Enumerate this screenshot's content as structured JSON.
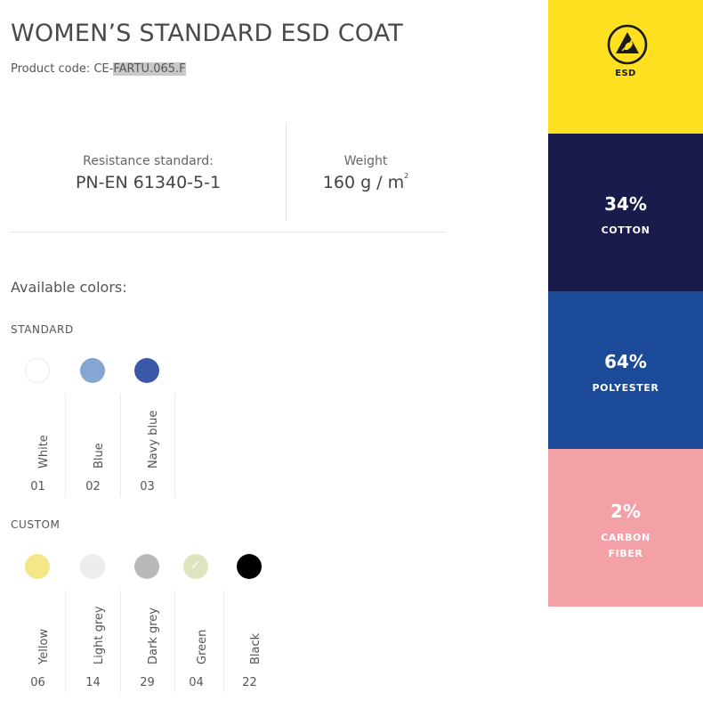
{
  "product": {
    "title": "WOMEN’S STANDARD ESD COAT",
    "code_label": "Product code: CE-",
    "code_highlight": "FARTU.065.F"
  },
  "specs": {
    "resistance_label": "Resistance standard:",
    "resistance_value": "PN-EN 61340-5-1",
    "weight_label": "Weight",
    "weight_value": "160 g / m",
    "weight_sup": "2"
  },
  "colors": {
    "heading": "Available colors:",
    "standard": {
      "title": "STANDARD",
      "items": [
        {
          "name": "White",
          "code": "01",
          "hex": "#ffffff"
        },
        {
          "name": "Blue",
          "code": "02",
          "hex": "#84a6d0"
        },
        {
          "name": "Navy blue",
          "code": "03",
          "hex": "#3a57a8"
        }
      ]
    },
    "custom": {
      "title": "CUSTOM",
      "items": [
        {
          "name": "Yellow",
          "code": "06",
          "hex": "#f4e788"
        },
        {
          "name": "Light grey",
          "code": "14",
          "hex": "#ececec"
        },
        {
          "name": "Dark grey",
          "code": "29",
          "hex": "#b9b9b9"
        },
        {
          "name": "Green",
          "code": "04",
          "hex": "#dde5bf",
          "selected": true
        },
        {
          "name": "Black",
          "code": "22",
          "hex": "#000000"
        }
      ]
    }
  },
  "composition": {
    "esd": {
      "label": "ESD",
      "icon": "esd-warning-icon",
      "color": "#ffe020"
    },
    "materials": [
      {
        "percent": "34%",
        "name": "COTTON",
        "color": "#191b4b"
      },
      {
        "percent": "64%",
        "name": "POLYESTER",
        "color": "#1b4a98"
      },
      {
        "percent": "2%",
        "name_line1": "CARBON",
        "name_line2": "FIBER",
        "color": "#f3a0a7"
      }
    ]
  }
}
